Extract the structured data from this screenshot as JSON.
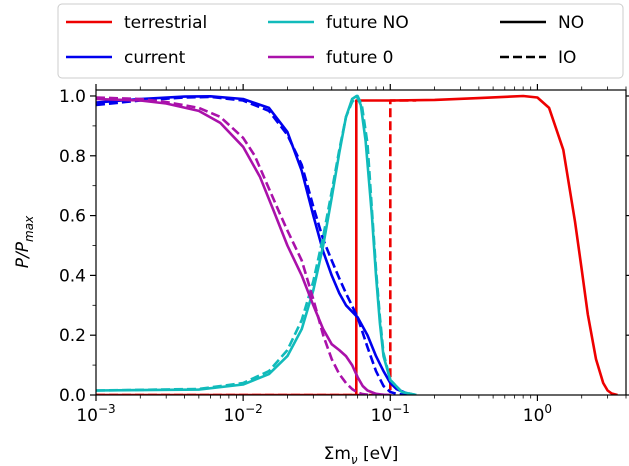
{
  "chart_data": {
    "type": "line",
    "xscale": "log",
    "xlim": [
      0.001,
      4.0
    ],
    "ylim": [
      0.0,
      1.02
    ],
    "xlabel": "Σm_ν [eV]",
    "ylabel": "P/P_max",
    "xticks": [
      {
        "value": 0.001,
        "mantissa": "10",
        "exp": "−3"
      },
      {
        "value": 0.01,
        "mantissa": "10",
        "exp": "−2"
      },
      {
        "value": 0.1,
        "mantissa": "10",
        "exp": "−1"
      },
      {
        "value": 1.0,
        "mantissa": "10",
        "exp": "0"
      }
    ],
    "yticks": [
      "0.0",
      "0.2",
      "0.4",
      "0.6",
      "0.8",
      "1.0"
    ],
    "legend": {
      "placement": "top-outside",
      "entries": [
        {
          "label": "terrestrial",
          "color": "#ee0000",
          "style": "solid"
        },
        {
          "label": "current",
          "color": "#0000ee",
          "style": "solid"
        },
        {
          "label": "future NO",
          "color": "#11bbbb",
          "style": "solid"
        },
        {
          "label": "future 0",
          "color": "#aa11aa",
          "style": "solid"
        },
        {
          "label": "NO",
          "color": "#000000",
          "style": "solid"
        },
        {
          "label": "IO",
          "color": "#000000",
          "style": "dashed"
        }
      ]
    },
    "series": [
      {
        "name": "terrestrial",
        "ordering": "NO",
        "color": "#ee0000",
        "dash": false,
        "x": [
          0.001,
          0.0588,
          0.0588,
          0.1,
          0.2,
          0.4,
          0.8,
          1.0,
          1.2,
          1.5,
          1.8,
          2.0,
          2.2,
          2.5,
          2.8,
          3.0,
          3.2,
          3.5
        ],
        "y": [
          0.0,
          0.0,
          0.985,
          0.985,
          0.987,
          0.993,
          1.0,
          0.995,
          0.96,
          0.82,
          0.58,
          0.42,
          0.27,
          0.12,
          0.04,
          0.015,
          0.005,
          0.0
        ]
      },
      {
        "name": "terrestrial",
        "ordering": "IO",
        "color": "#ee0000",
        "dash": true,
        "x": [
          0.001,
          0.1,
          0.1,
          0.15
        ],
        "y": [
          0.0,
          0.0,
          0.985,
          0.985
        ]
      },
      {
        "name": "current",
        "ordering": "NO",
        "color": "#0000ee",
        "dash": false,
        "x": [
          0.001,
          0.002,
          0.004,
          0.006,
          0.01,
          0.015,
          0.02,
          0.025,
          0.03,
          0.035,
          0.04,
          0.045,
          0.05,
          0.06,
          0.07,
          0.08,
          0.09,
          0.1,
          0.11,
          0.13,
          0.15
        ],
        "y": [
          0.978,
          0.99,
          0.998,
          0.999,
          0.99,
          0.96,
          0.88,
          0.75,
          0.6,
          0.48,
          0.4,
          0.34,
          0.3,
          0.26,
          0.2,
          0.13,
          0.08,
          0.04,
          0.02,
          0.005,
          0.0
        ]
      },
      {
        "name": "current",
        "ordering": "IO",
        "color": "#0000ee",
        "dash": true,
        "x": [
          0.001,
          0.002,
          0.004,
          0.006,
          0.01,
          0.015,
          0.02,
          0.025,
          0.03,
          0.035,
          0.04,
          0.045,
          0.05,
          0.06,
          0.07,
          0.08,
          0.09,
          0.1,
          0.11,
          0.13
        ],
        "y": [
          0.97,
          0.985,
          0.995,
          0.997,
          0.985,
          0.95,
          0.87,
          0.77,
          0.63,
          0.52,
          0.45,
          0.39,
          0.34,
          0.26,
          0.16,
          0.08,
          0.03,
          0.01,
          0.004,
          0.0
        ]
      },
      {
        "name": "future NO",
        "ordering": "NO",
        "color": "#11bbbb",
        "dash": false,
        "x": [
          0.001,
          0.005,
          0.01,
          0.015,
          0.02,
          0.025,
          0.03,
          0.035,
          0.04,
          0.045,
          0.05,
          0.055,
          0.059,
          0.063,
          0.068,
          0.075,
          0.08,
          0.085,
          0.09,
          0.1,
          0.12,
          0.15
        ],
        "y": [
          0.015,
          0.018,
          0.035,
          0.07,
          0.13,
          0.22,
          0.35,
          0.5,
          0.66,
          0.81,
          0.93,
          0.99,
          1.0,
          0.97,
          0.85,
          0.6,
          0.4,
          0.24,
          0.13,
          0.05,
          0.01,
          0.0
        ]
      },
      {
        "name": "future NO",
        "ordering": "IO",
        "color": "#11bbbb",
        "dash": true,
        "x": [
          0.001,
          0.005,
          0.01,
          0.015,
          0.02,
          0.025,
          0.03,
          0.035,
          0.04,
          0.045,
          0.05,
          0.055,
          0.06,
          0.064,
          0.07,
          0.075,
          0.08,
          0.085,
          0.09,
          0.1,
          0.12,
          0.15
        ],
        "y": [
          0.015,
          0.02,
          0.04,
          0.08,
          0.15,
          0.25,
          0.38,
          0.53,
          0.68,
          0.82,
          0.93,
          0.98,
          1.0,
          0.97,
          0.84,
          0.62,
          0.42,
          0.26,
          0.14,
          0.05,
          0.01,
          0.0
        ]
      },
      {
        "name": "future 0",
        "ordering": "NO",
        "color": "#aa11aa",
        "dash": false,
        "x": [
          0.001,
          0.002,
          0.003,
          0.005,
          0.007,
          0.01,
          0.013,
          0.016,
          0.02,
          0.025,
          0.03,
          0.035,
          0.04,
          0.045,
          0.05,
          0.055,
          0.06,
          0.065,
          0.07,
          0.08,
          0.09,
          0.1
        ],
        "y": [
          0.99,
          0.985,
          0.975,
          0.95,
          0.91,
          0.83,
          0.73,
          0.62,
          0.5,
          0.4,
          0.3,
          0.22,
          0.17,
          0.15,
          0.13,
          0.1,
          0.06,
          0.03,
          0.015,
          0.004,
          0.001,
          0.0
        ]
      },
      {
        "name": "future 0",
        "ordering": "IO",
        "color": "#aa11aa",
        "dash": true,
        "x": [
          0.001,
          0.002,
          0.003,
          0.005,
          0.007,
          0.01,
          0.012,
          0.015,
          0.018,
          0.02,
          0.025,
          0.03,
          0.035,
          0.04,
          0.045,
          0.05,
          0.055,
          0.06,
          0.065,
          0.07,
          0.08
        ],
        "y": [
          0.995,
          0.99,
          0.98,
          0.96,
          0.93,
          0.86,
          0.8,
          0.69,
          0.6,
          0.55,
          0.45,
          0.32,
          0.2,
          0.12,
          0.07,
          0.04,
          0.02,
          0.008,
          0.003,
          0.001,
          0.0
        ]
      }
    ]
  }
}
